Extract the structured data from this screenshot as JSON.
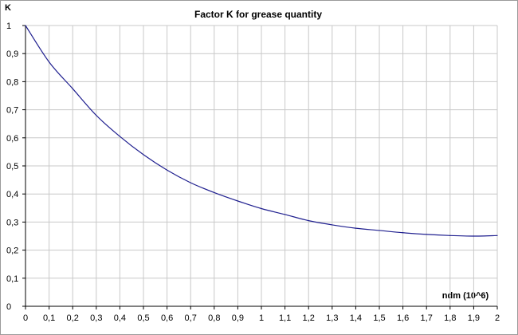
{
  "chart_data": {
    "type": "line",
    "title": "Factor K for grease quantity",
    "xlabel": "ndm (10^6)",
    "ylabel": "K",
    "xlim": [
      0,
      2
    ],
    "ylim": [
      0,
      1
    ],
    "grid": true,
    "x_ticks": [
      "0",
      "0,1",
      "0,2",
      "0,3",
      "0,4",
      "0,5",
      "0,6",
      "0,7",
      "0,8",
      "0,9",
      "1",
      "1,1",
      "1,2",
      "1,3",
      "1,4",
      "1,5",
      "1,6",
      "1,7",
      "1,8",
      "1,9",
      "2"
    ],
    "y_ticks": [
      "0",
      "0,1",
      "0,2",
      "0,3",
      "0,4",
      "0,5",
      "0,6",
      "0,7",
      "0,8",
      "0,9",
      "1"
    ],
    "series": [
      {
        "color": "#1f1f8f",
        "x": [
          0,
          0.1,
          0.2,
          0.3,
          0.4,
          0.5,
          0.6,
          0.7,
          0.8,
          0.9,
          1.0,
          1.1,
          1.2,
          1.3,
          1.4,
          1.5,
          1.6,
          1.7,
          1.8,
          1.9,
          2.0
        ],
        "y": [
          1.0,
          0.87,
          0.775,
          0.68,
          0.605,
          0.54,
          0.485,
          0.44,
          0.405,
          0.375,
          0.348,
          0.327,
          0.305,
          0.29,
          0.278,
          0.27,
          0.262,
          0.256,
          0.252,
          0.25,
          0.252
        ]
      }
    ]
  }
}
